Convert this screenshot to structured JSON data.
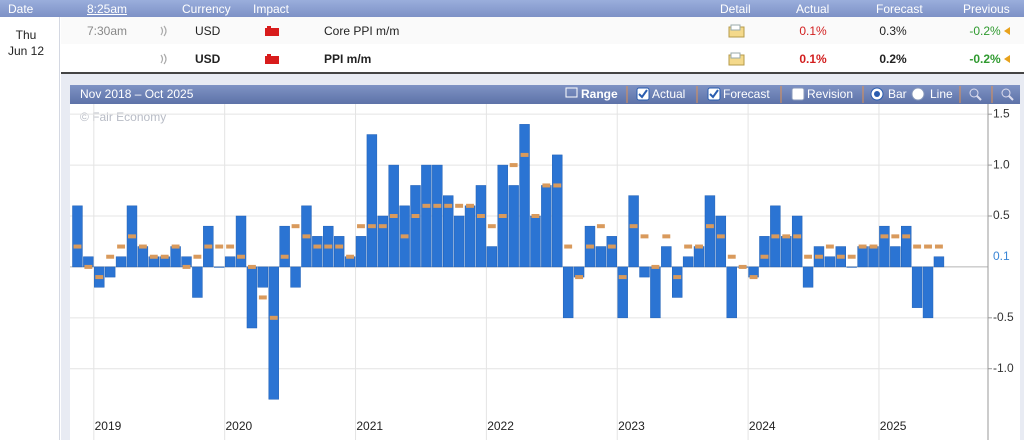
{
  "calendar": {
    "header": {
      "date": "Date",
      "time": "8:25am",
      "currency": "Currency",
      "impact": "Impact",
      "detail": "Detail",
      "actual": "Actual",
      "forecast": "Forecast",
      "previous": "Previous"
    },
    "day": {
      "weekday": "Thu",
      "date": "Jun 12"
    },
    "rows": [
      {
        "time": "7:30am",
        "currency": "USD",
        "event": "Core PPI m/m",
        "actual": "0.1%",
        "forecast": "0.3%",
        "previous": "-0.2%"
      },
      {
        "currency": "USD",
        "event": "PPI m/m",
        "actual": "0.1%",
        "forecast": "0.2%",
        "previous": "-0.2%"
      }
    ]
  },
  "chart_data": {
    "type": "bar",
    "range_label": "Nov 2018 – Oct 2025",
    "watermark": "© Fair Economy",
    "controls": {
      "range": "Range",
      "revision": "Revision",
      "bar": "Bar",
      "line": "Line"
    },
    "categories": [
      null,
      null,
      "2019",
      null,
      null,
      null,
      null,
      null,
      null,
      null,
      null,
      null,
      null,
      null,
      "2020",
      null,
      null,
      null,
      null,
      null,
      null,
      null,
      null,
      null,
      null,
      null,
      "2021",
      null,
      null,
      null,
      null,
      null,
      null,
      null,
      null,
      null,
      null,
      null,
      "2022",
      null,
      null,
      null,
      null,
      null,
      null,
      null,
      null,
      null,
      null,
      null,
      "2023",
      null,
      null,
      null,
      null,
      null,
      null,
      null,
      null,
      null,
      null,
      null,
      "2024",
      null,
      null,
      null,
      null,
      null,
      null,
      null,
      null,
      null,
      null,
      null,
      "2025",
      null,
      null,
      null,
      null,
      null,
      null,
      null,
      null,
      null
    ],
    "series": [
      {
        "name": "Actual",
        "color": "#2b74d3",
        "style": "bar",
        "values": [
          0.6,
          0.1,
          -0.2,
          -0.1,
          0.1,
          0.6,
          0.2,
          0.1,
          0.1,
          0.2,
          0.1,
          -0.3,
          0.4,
          0.0,
          0.1,
          0.5,
          -0.6,
          -0.2,
          -1.3,
          0.4,
          -0.2,
          0.6,
          0.3,
          0.4,
          0.3,
          0.1,
          0.3,
          1.3,
          0.5,
          1.0,
          0.6,
          0.8,
          1.0,
          1.0,
          0.7,
          0.5,
          0.6,
          0.8,
          0.2,
          1.0,
          0.8,
          1.4,
          0.5,
          0.8,
          1.1,
          -0.5,
          -0.1,
          0.4,
          0.2,
          0.3,
          -0.5,
          0.7,
          -0.1,
          -0.5,
          0.2,
          -0.3,
          0.1,
          0.2,
          0.7,
          0.5,
          -0.5,
          0.0,
          -0.1,
          0.3,
          0.6,
          0.3,
          0.5,
          -0.2,
          0.2,
          0.1,
          0.2,
          0.0,
          0.2,
          0.2,
          0.4,
          0.2,
          0.4,
          -0.4,
          -0.5,
          0.1,
          null,
          null,
          null,
          null
        ]
      },
      {
        "name": "Forecast",
        "color": "#d99a5c",
        "style": "marker",
        "values": [
          0.2,
          0.0,
          -0.1,
          0.1,
          0.2,
          0.3,
          0.2,
          0.1,
          0.1,
          0.2,
          0.0,
          0.1,
          0.2,
          0.2,
          0.2,
          0.1,
          0.0,
          -0.3,
          -0.5,
          0.1,
          0.4,
          0.3,
          0.2,
          0.2,
          0.2,
          0.1,
          0.4,
          0.4,
          0.4,
          0.5,
          0.3,
          0.5,
          0.6,
          0.6,
          0.6,
          0.6,
          0.6,
          0.5,
          0.4,
          0.5,
          1.0,
          1.1,
          0.5,
          0.8,
          0.8,
          0.2,
          -0.1,
          0.2,
          0.4,
          0.2,
          -0.1,
          0.4,
          0.3,
          0.0,
          0.3,
          -0.1,
          0.2,
          0.2,
          0.4,
          0.3,
          0.1,
          0.0,
          -0.1,
          0.1,
          0.3,
          0.3,
          0.3,
          0.1,
          0.1,
          0.2,
          0.1,
          0.1,
          0.2,
          0.2,
          0.3,
          0.3,
          0.3,
          0.2,
          0.2,
          0.2,
          null,
          null,
          null,
          null
        ]
      }
    ],
    "ylim": [
      -1.7,
      1.6
    ],
    "yticks": [
      1.5,
      {
        "value": 1,
        "label": "1.0"
      },
      0.5,
      -0.5,
      {
        "value": -1,
        "label": "-1.0"
      }
    ],
    "grid": true
  }
}
